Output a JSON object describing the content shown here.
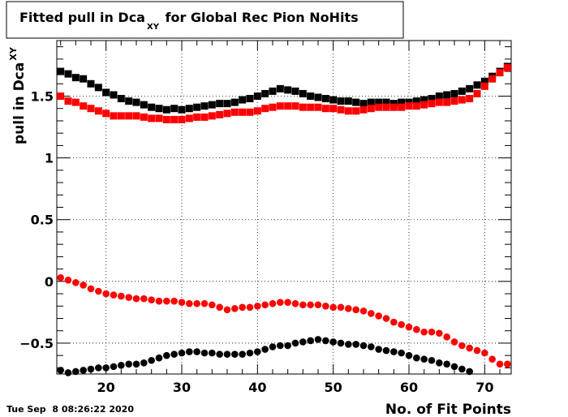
{
  "title": {
    "prefix": "Fitted pull in Dca",
    "subscript": "XY",
    "suffix": " for Global Rec Pion NoHits"
  },
  "timestamp": "Tue Sep  8 08:26:22 2020",
  "chart_data": {
    "type": "scatter",
    "title": "Fitted pull in Dca_XY for Global Rec Pion NoHits",
    "xlabel": "No. of Fit Points",
    "ylabel": "pull in Dca",
    "ylabel_subscript": "XY",
    "xlim": [
      13.5,
      73.5
    ],
    "ylim": [
      -0.75,
      1.95
    ],
    "x_ticks": [
      20,
      30,
      40,
      50,
      60,
      70
    ],
    "y_ticks": [
      -0.5,
      0,
      0.5,
      1,
      1.5
    ],
    "y_tick_labels": [
      "−0.5",
      "0",
      "0.5",
      "1",
      "1.5"
    ],
    "grid": true,
    "legend": "none",
    "series": [
      {
        "color": "#000000",
        "marker": "square",
        "x": [
          14,
          15,
          16,
          17,
          18,
          19,
          20,
          21,
          22,
          23,
          24,
          25,
          26,
          27,
          28,
          29,
          30,
          31,
          32,
          33,
          34,
          35,
          36,
          37,
          38,
          39,
          40,
          41,
          42,
          43,
          44,
          45,
          46,
          47,
          48,
          49,
          50,
          51,
          52,
          53,
          54,
          55,
          56,
          57,
          58,
          59,
          60,
          61,
          62,
          63,
          64,
          65,
          66,
          67,
          68,
          69,
          70,
          71,
          72,
          73
        ],
        "y": [
          1.7,
          1.68,
          1.65,
          1.64,
          1.6,
          1.57,
          1.53,
          1.51,
          1.48,
          1.46,
          1.45,
          1.43,
          1.41,
          1.4,
          1.39,
          1.4,
          1.39,
          1.4,
          1.41,
          1.42,
          1.43,
          1.44,
          1.44,
          1.45,
          1.47,
          1.48,
          1.5,
          1.52,
          1.54,
          1.56,
          1.55,
          1.54,
          1.52,
          1.5,
          1.49,
          1.48,
          1.47,
          1.46,
          1.46,
          1.45,
          1.44,
          1.45,
          1.45,
          1.45,
          1.44,
          1.45,
          1.45,
          1.46,
          1.47,
          1.48,
          1.5,
          1.51,
          1.52,
          1.54,
          1.56,
          1.59,
          1.62,
          1.66,
          1.7,
          1.74
        ]
      },
      {
        "color": "#ff0000",
        "marker": "square",
        "x": [
          14,
          15,
          16,
          17,
          18,
          19,
          20,
          21,
          22,
          23,
          24,
          25,
          26,
          27,
          28,
          29,
          30,
          31,
          32,
          33,
          34,
          35,
          36,
          37,
          38,
          39,
          40,
          41,
          42,
          43,
          44,
          45,
          46,
          47,
          48,
          49,
          50,
          51,
          52,
          53,
          54,
          55,
          56,
          57,
          58,
          59,
          60,
          61,
          62,
          63,
          64,
          65,
          66,
          67,
          68,
          69,
          70,
          71,
          72,
          73
        ],
        "y": [
          1.5,
          1.46,
          1.45,
          1.42,
          1.4,
          1.38,
          1.36,
          1.34,
          1.34,
          1.34,
          1.34,
          1.33,
          1.32,
          1.32,
          1.31,
          1.31,
          1.31,
          1.32,
          1.33,
          1.33,
          1.34,
          1.35,
          1.36,
          1.37,
          1.37,
          1.37,
          1.38,
          1.4,
          1.41,
          1.42,
          1.42,
          1.42,
          1.41,
          1.41,
          1.41,
          1.4,
          1.4,
          1.39,
          1.38,
          1.38,
          1.39,
          1.4,
          1.41,
          1.41,
          1.41,
          1.41,
          1.42,
          1.42,
          1.43,
          1.44,
          1.45,
          1.45,
          1.46,
          1.47,
          1.48,
          1.52,
          1.58,
          1.64,
          1.69,
          1.73
        ]
      },
      {
        "color": "#ff0000",
        "marker": "circle",
        "x": [
          14,
          15,
          16,
          17,
          18,
          19,
          20,
          21,
          22,
          23,
          24,
          25,
          26,
          27,
          28,
          29,
          30,
          31,
          32,
          33,
          34,
          35,
          36,
          37,
          38,
          39,
          40,
          41,
          42,
          43,
          44,
          45,
          46,
          47,
          48,
          49,
          50,
          51,
          52,
          53,
          54,
          55,
          56,
          57,
          58,
          59,
          60,
          61,
          62,
          63,
          64,
          65,
          66,
          67,
          68,
          69,
          70,
          71,
          72,
          73
        ],
        "y": [
          0.03,
          0.01,
          -0.01,
          -0.03,
          -0.06,
          -0.08,
          -0.1,
          -0.11,
          -0.12,
          -0.13,
          -0.14,
          -0.14,
          -0.15,
          -0.16,
          -0.16,
          -0.16,
          -0.17,
          -0.18,
          -0.18,
          -0.18,
          -0.19,
          -0.21,
          -0.23,
          -0.22,
          -0.21,
          -0.21,
          -0.2,
          -0.19,
          -0.18,
          -0.17,
          -0.17,
          -0.18,
          -0.19,
          -0.19,
          -0.19,
          -0.2,
          -0.21,
          -0.21,
          -0.22,
          -0.23,
          -0.24,
          -0.26,
          -0.28,
          -0.3,
          -0.33,
          -0.35,
          -0.37,
          -0.39,
          -0.41,
          -0.41,
          -0.42,
          -0.45,
          -0.49,
          -0.52,
          -0.54,
          -0.56,
          -0.58,
          -0.63,
          -0.67,
          -0.67
        ]
      },
      {
        "color": "#000000",
        "marker": "circle",
        "x": [
          14,
          15,
          16,
          17,
          18,
          19,
          20,
          21,
          22,
          23,
          24,
          25,
          26,
          27,
          28,
          29,
          30,
          31,
          32,
          33,
          34,
          35,
          36,
          37,
          38,
          39,
          40,
          41,
          42,
          43,
          44,
          45,
          46,
          47,
          48,
          49,
          50,
          51,
          52,
          53,
          54,
          55,
          56,
          57,
          58,
          59,
          60,
          61,
          62,
          63,
          64,
          65,
          66,
          67,
          68
        ],
        "y": [
          -0.72,
          -0.74,
          -0.73,
          -0.72,
          -0.71,
          -0.7,
          -0.7,
          -0.69,
          -0.68,
          -0.67,
          -0.67,
          -0.66,
          -0.64,
          -0.62,
          -0.6,
          -0.59,
          -0.58,
          -0.57,
          -0.57,
          -0.58,
          -0.58,
          -0.59,
          -0.59,
          -0.59,
          -0.59,
          -0.58,
          -0.57,
          -0.55,
          -0.53,
          -0.52,
          -0.52,
          -0.5,
          -0.49,
          -0.48,
          -0.47,
          -0.48,
          -0.49,
          -0.5,
          -0.51,
          -0.51,
          -0.52,
          -0.53,
          -0.55,
          -0.56,
          -0.57,
          -0.58,
          -0.6,
          -0.62,
          -0.63,
          -0.64,
          -0.66,
          -0.67,
          -0.69,
          -0.71,
          -0.73
        ]
      }
    ]
  }
}
